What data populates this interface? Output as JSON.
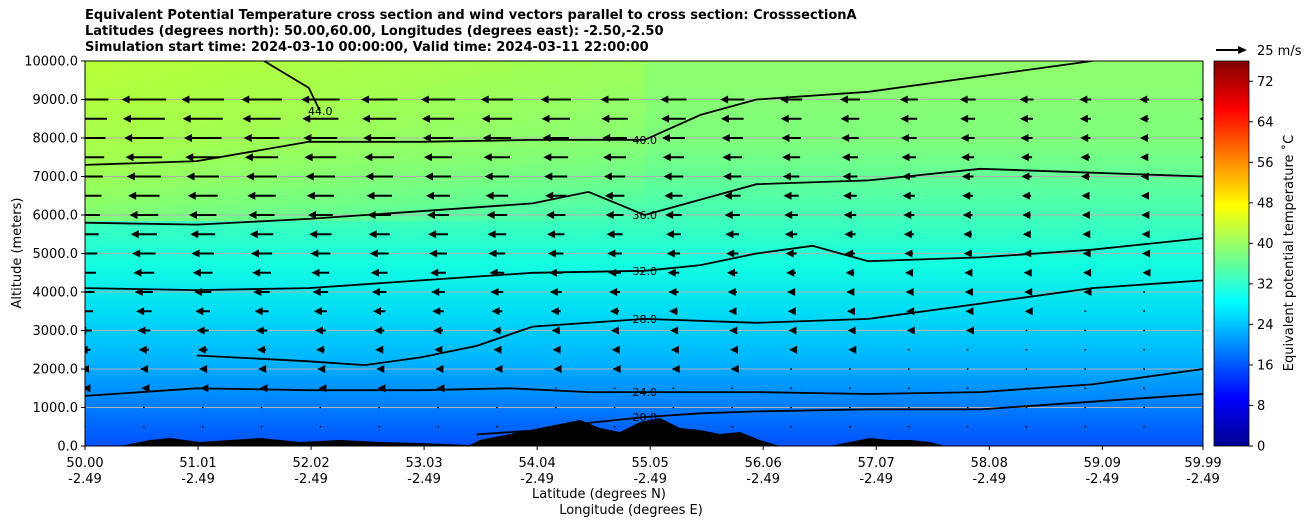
{
  "chart_data": {
    "type": "heatmap",
    "title_lines": [
      "Equivalent Potential Temperature cross section and wind vectors parallel to cross section: CrosssectionA",
      "Latitudes (degrees north): 50.00,60.00, Longitudes (degrees east): -2.50,-2.50",
      "Simulation start time: 2024-03-10 00:00:00, Valid time: 2024-03-11 22:00:00"
    ],
    "xlabel": "Latitude (degrees N)",
    "xlabel2": "Longitude (degrees E)",
    "ylabel": "Altitude (meters)",
    "xlim": [
      50.0,
      59.99
    ],
    "ylim": [
      0,
      10000
    ],
    "x_ticks": [
      {
        "lat": "50.00",
        "lon": "-2.49",
        "v": 50.0
      },
      {
        "lat": "51.01",
        "lon": "-2.49",
        "v": 51.01
      },
      {
        "lat": "52.02",
        "lon": "-2.49",
        "v": 52.02
      },
      {
        "lat": "53.03",
        "lon": "-2.49",
        "v": 53.03
      },
      {
        "lat": "54.04",
        "lon": "-2.49",
        "v": 54.04
      },
      {
        "lat": "55.05",
        "lon": "-2.49",
        "v": 55.05
      },
      {
        "lat": "56.06",
        "lon": "-2.49",
        "v": 56.06
      },
      {
        "lat": "57.07",
        "lon": "-2.49",
        "v": 57.07
      },
      {
        "lat": "58.08",
        "lon": "-2.49",
        "v": 58.08
      },
      {
        "lat": "59.09",
        "lon": "-2.49",
        "v": 59.09
      },
      {
        "lat": "59.99",
        "lon": "-2.49",
        "v": 59.99
      }
    ],
    "y_ticks": [
      0,
      1000,
      2000,
      3000,
      4000,
      5000,
      6000,
      7000,
      8000,
      9000,
      10000
    ],
    "y_tick_labels": [
      "0.0",
      "1000.0",
      "2000.0",
      "3000.0",
      "4000.0",
      "5000.0",
      "6000.0",
      "7000.0",
      "8000.0",
      "9000.0",
      "10000.0"
    ],
    "grid": "horizontal",
    "colorbar": {
      "label": "Equivalent potential temperature $^\\circ$C",
      "label_display": "Equivalent potential temperature ˚C",
      "range": [
        0,
        76
      ],
      "ticks": [
        "0",
        "8",
        "16",
        "24",
        "32",
        "40",
        "48",
        "56",
        "64",
        "72"
      ],
      "tick_values": [
        0,
        8,
        16,
        24,
        32,
        40,
        48,
        56,
        64,
        72
      ],
      "colormap": "jet"
    },
    "quiver_key": {
      "label": "25 m/s",
      "speed": 25
    },
    "contours": [
      {
        "level": 20.0,
        "label": "20.0",
        "points": [
          [
            53.5,
            300
          ],
          [
            54.0,
            400
          ],
          [
            54.5,
            600
          ],
          [
            55.0,
            750
          ],
          [
            55.5,
            850
          ],
          [
            56.0,
            900
          ],
          [
            57.0,
            950
          ],
          [
            58.0,
            950
          ],
          [
            59.0,
            1150
          ],
          [
            59.99,
            1350
          ]
        ]
      },
      {
        "level": 24.0,
        "label": "24.0",
        "points": [
          [
            50.0,
            1300
          ],
          [
            51.0,
            1500
          ],
          [
            52.0,
            1450
          ],
          [
            53.0,
            1450
          ],
          [
            53.8,
            1500
          ],
          [
            54.5,
            1400
          ],
          [
            55.0,
            1400
          ],
          [
            56.0,
            1400
          ],
          [
            57.0,
            1350
          ],
          [
            58.0,
            1400
          ],
          [
            59.0,
            1600
          ],
          [
            59.99,
            2000
          ]
        ]
      },
      {
        "level": 28.0,
        "label": "28.0",
        "points": [
          [
            51.0,
            2350
          ],
          [
            52.0,
            2200
          ],
          [
            52.5,
            2100
          ],
          [
            53.0,
            2300
          ],
          [
            53.5,
            2600
          ],
          [
            54.0,
            3100
          ],
          [
            55.0,
            3300
          ],
          [
            56.0,
            3200
          ],
          [
            57.0,
            3300
          ],
          [
            58.0,
            3700
          ],
          [
            59.0,
            4100
          ],
          [
            59.99,
            4300
          ]
        ]
      },
      {
        "level": 32.0,
        "label": "32.0",
        "points": [
          [
            50.0,
            4100
          ],
          [
            51.0,
            4050
          ],
          [
            52.0,
            4100
          ],
          [
            53.0,
            4300
          ],
          [
            54.0,
            4500
          ],
          [
            55.0,
            4550
          ],
          [
            55.5,
            4700
          ],
          [
            56.0,
            5000
          ],
          [
            56.5,
            5200
          ],
          [
            57.0,
            4800
          ],
          [
            58.0,
            4900
          ],
          [
            59.0,
            5100
          ],
          [
            59.99,
            5400
          ]
        ]
      },
      {
        "level": 36.0,
        "label": "36.0",
        "points": [
          [
            50.0,
            5800
          ],
          [
            51.0,
            5750
          ],
          [
            52.0,
            5900
          ],
          [
            53.0,
            6100
          ],
          [
            54.0,
            6300
          ],
          [
            54.5,
            6600
          ],
          [
            55.0,
            6000
          ],
          [
            55.5,
            6400
          ],
          [
            56.0,
            6800
          ],
          [
            57.0,
            6900
          ],
          [
            58.0,
            7200
          ],
          [
            59.0,
            7100
          ],
          [
            59.99,
            7000
          ]
        ]
      },
      {
        "level": 40.0,
        "label": "40.0",
        "points": [
          [
            50.0,
            7300
          ],
          [
            51.0,
            7400
          ],
          [
            52.0,
            7900
          ],
          [
            53.0,
            7900
          ],
          [
            54.0,
            7950
          ],
          [
            55.0,
            7950
          ],
          [
            55.5,
            8600
          ],
          [
            56.0,
            9000
          ],
          [
            57.0,
            9200
          ],
          [
            58.0,
            9600
          ],
          [
            59.0,
            10000
          ]
        ]
      },
      {
        "level": 44.0,
        "label": "44.0",
        "points": [
          [
            51.6,
            10000
          ],
          [
            52.0,
            9300
          ],
          [
            52.1,
            8700
          ]
        ]
      }
    ],
    "terrain_note": "black terrain silhouette along surface"
  }
}
